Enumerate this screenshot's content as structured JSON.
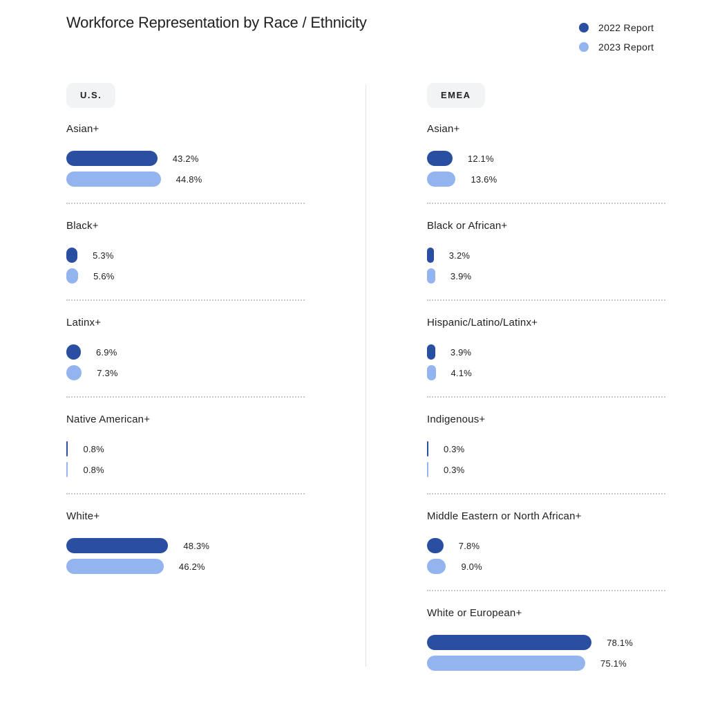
{
  "title": "Workforce Representation by Race / Ethnicity",
  "legend": [
    {
      "label": "2022 Report",
      "color": "#2a4fa0"
    },
    {
      "label": "2023 Report",
      "color": "#93b4ef"
    }
  ],
  "chart_data": [
    {
      "type": "bar",
      "title": "U.S.",
      "series": [
        "2022 Report",
        "2023 Report"
      ],
      "groups": [
        {
          "label": "Asian+",
          "values": [
            43.2,
            44.8
          ],
          "display": [
            "43.2%",
            "44.8%"
          ]
        },
        {
          "label": "Black+",
          "values": [
            5.3,
            5.6
          ],
          "display": [
            "5.3%",
            "5.6%"
          ]
        },
        {
          "label": "Latinx+",
          "values": [
            6.9,
            7.3
          ],
          "display": [
            "6.9%",
            "7.3%"
          ]
        },
        {
          "label": "Native American+",
          "values": [
            0.8,
            0.8
          ],
          "display": [
            "0.8%",
            "0.8%"
          ]
        },
        {
          "label": "White+",
          "values": [
            48.3,
            46.2
          ],
          "display": [
            "48.3%",
            "46.2%"
          ]
        }
      ]
    },
    {
      "type": "bar",
      "title": "EMEA",
      "series": [
        "2022 Report",
        "2023 Report"
      ],
      "groups": [
        {
          "label": "Asian+",
          "values": [
            12.1,
            13.6
          ],
          "display": [
            "12.1%",
            "13.6%"
          ]
        },
        {
          "label": "Black or African+",
          "values": [
            3.2,
            3.9
          ],
          "display": [
            "3.2%",
            "3.9%"
          ]
        },
        {
          "label": "Hispanic/Latino/Latinx+",
          "values": [
            3.9,
            4.1
          ],
          "display": [
            "3.9%",
            "4.1%"
          ]
        },
        {
          "label": "Indigenous+",
          "values": [
            0.3,
            0.3
          ],
          "display": [
            "0.3%",
            "0.3%"
          ]
        },
        {
          "label": "Middle Eastern or North African+",
          "values": [
            7.8,
            9.0
          ],
          "display": [
            "7.8%",
            "9.0%"
          ]
        },
        {
          "label": "White or European+",
          "values": [
            78.1,
            75.1
          ],
          "display": [
            "78.1%",
            "75.1%"
          ]
        }
      ]
    }
  ]
}
